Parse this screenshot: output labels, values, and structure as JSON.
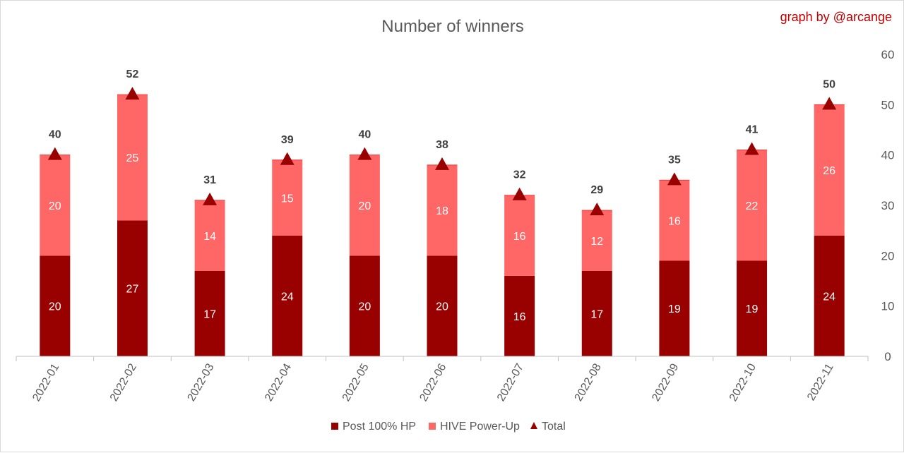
{
  "chart_data": {
    "type": "bar",
    "stacked": true,
    "title": "Number of winners",
    "credit": "graph by @arcange",
    "categories": [
      "2022-01",
      "2022-02",
      "2022-03",
      "2022-04",
      "2022-05",
      "2022-06",
      "2022-07",
      "2022-08",
      "2022-09",
      "2022-10",
      "2022-11"
    ],
    "series": [
      {
        "name": "Post 100% HP",
        "color": "#990000",
        "values": [
          20,
          27,
          17,
          24,
          20,
          20,
          16,
          17,
          19,
          19,
          24
        ]
      },
      {
        "name": "HIVE Power-Up",
        "color": "#ff6666",
        "values": [
          20,
          25,
          14,
          15,
          20,
          18,
          16,
          12,
          16,
          22,
          26
        ]
      }
    ],
    "total": {
      "name": "Total",
      "color": "#990000",
      "marker": "triangle",
      "values": [
        40,
        52,
        31,
        39,
        40,
        38,
        32,
        29,
        35,
        41,
        50
      ]
    },
    "yaxis": {
      "position": "right",
      "ylim": [
        0,
        60
      ],
      "ticks": [
        0,
        10,
        20,
        30,
        40,
        50,
        60
      ]
    },
    "grid": false,
    "legend": "bottom"
  }
}
